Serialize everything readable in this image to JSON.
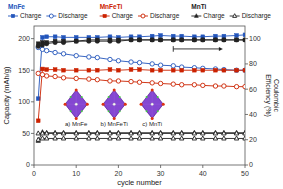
{
  "chart_data": {
    "type": "line",
    "xlabel": "cycle number",
    "ylabel": "Capacity (mAh/g)",
    "y2label": "Coulombic\nEfficiency (%)",
    "xlim": [
      0,
      50
    ],
    "xticks": [
      0,
      10,
      20,
      30,
      40,
      50
    ],
    "ylim": [
      0,
      220
    ],
    "yticks": [
      0,
      50,
      100,
      150,
      200
    ],
    "y2lim": [
      0,
      110
    ],
    "y2ticks": [
      0,
      20,
      40,
      60,
      80,
      100
    ],
    "grid": false,
    "legend": "top",
    "legend_groups": [
      "MnFe",
      "MnFeTi",
      "MnTi"
    ],
    "annotations": [
      "a) MnFe",
      "b) MnFeTi",
      "c) MnTi"
    ],
    "series": [
      {
        "name": "Charge",
        "color": "#2255bb",
        "marker": "square",
        "x": [
          1,
          2,
          3,
          5,
          7,
          10,
          13,
          15,
          18,
          20,
          23,
          25,
          28,
          30,
          33,
          35,
          38,
          40,
          43,
          45,
          48,
          50
        ],
        "values": [
          105,
          202,
          203,
          203,
          202,
          202,
          202,
          202,
          203,
          202,
          203,
          203,
          204,
          205,
          204,
          204,
          203,
          203,
          204,
          204,
          205,
          206
        ]
      },
      {
        "name": "Discharge",
        "color": "#2255bb",
        "marker": "circle-open",
        "x": [
          1,
          2,
          3,
          5,
          7,
          10,
          13,
          15,
          18,
          20,
          23,
          25,
          28,
          30,
          33,
          35,
          38,
          40,
          43,
          45,
          48,
          50
        ],
        "values": [
          186,
          183,
          181,
          178,
          176,
          173,
          171,
          170,
          167,
          165,
          163,
          162,
          160,
          158,
          157,
          155,
          154,
          153,
          152,
          151,
          150,
          150
        ]
      },
      {
        "name": "Charge",
        "color": "#cc2200",
        "marker": "square",
        "x": [
          1,
          2,
          3,
          5,
          7,
          10,
          13,
          15,
          18,
          20,
          23,
          25,
          28,
          30,
          33,
          35,
          38,
          40,
          43,
          45,
          48,
          50
        ],
        "values": [
          70,
          152,
          151,
          151,
          150,
          150,
          150,
          150,
          151,
          150,
          151,
          151,
          150,
          150,
          150,
          150,
          150,
          150,
          150,
          150,
          150,
          150
        ]
      },
      {
        "name": "Discharge",
        "color": "#cc2200",
        "marker": "circle-open",
        "x": [
          1,
          2,
          3,
          5,
          7,
          10,
          13,
          15,
          18,
          20,
          23,
          25,
          28,
          30,
          33,
          35,
          38,
          40,
          43,
          45,
          48,
          50
        ],
        "values": [
          145,
          143,
          141,
          140,
          138,
          137,
          136,
          135,
          133,
          133,
          132,
          131,
          130,
          129,
          128,
          127,
          127,
          126,
          125,
          125,
          124,
          124
        ]
      },
      {
        "name": "Charge",
        "color": "#222222",
        "marker": "triangle",
        "x": [
          1,
          2,
          3,
          5,
          7,
          10,
          13,
          15,
          18,
          20,
          23,
          25,
          28,
          30,
          33,
          35,
          38,
          40,
          43,
          45,
          48,
          50
        ],
        "values": [
          38,
          52,
          51,
          51,
          51,
          51,
          51,
          51,
          51,
          51,
          51,
          51,
          51,
          51,
          51,
          51,
          51,
          51,
          51,
          51,
          51,
          51
        ]
      },
      {
        "name": "Discharge",
        "color": "#222222",
        "marker": "triangle-open",
        "x": [
          1,
          2,
          3,
          5,
          7,
          10,
          13,
          15,
          18,
          20,
          23,
          25,
          28,
          30,
          33,
          35,
          38,
          40,
          43,
          45,
          48,
          50
        ],
        "values": [
          50,
          50,
          50,
          50,
          50,
          50,
          50,
          50,
          50,
          50,
          50,
          50,
          50,
          50,
          50,
          50,
          50,
          50,
          50,
          50,
          50,
          50
        ]
      },
      {
        "color": "#222222",
        "marker": "square",
        "axis": "y2",
        "x": [
          1,
          2,
          3,
          5,
          7,
          10,
          13,
          15,
          18,
          20,
          23,
          25,
          28,
          30,
          33,
          35,
          38,
          40,
          43,
          45,
          48,
          50
        ],
        "values": [
          96,
          97,
          97,
          98,
          98,
          98,
          99,
          99,
          99,
          99,
          99,
          99,
          99,
          99,
          99,
          99,
          99,
          99,
          99,
          99,
          99,
          99
        ]
      },
      {
        "color": "#222222",
        "marker": "circle",
        "axis": "y2",
        "x": [
          1,
          2,
          3,
          5,
          7,
          10,
          13,
          15,
          18,
          20,
          23,
          25,
          28,
          30,
          33,
          35,
          38,
          40,
          43,
          45,
          48,
          50
        ],
        "values": [
          94,
          95,
          96,
          97,
          97,
          98,
          98,
          98,
          98,
          98,
          99,
          99,
          99,
          99,
          99,
          99,
          99,
          99,
          99,
          99,
          99,
          99
        ]
      },
      {
        "color": "#222222",
        "marker": "triangle-open",
        "axis": "y2",
        "x": [
          1,
          2,
          3,
          5,
          7,
          10,
          13,
          15,
          18,
          20,
          23,
          25,
          28,
          30,
          33,
          35,
          38,
          40,
          43,
          45,
          48,
          50
        ],
        "values": [
          20,
          21,
          21,
          21,
          21,
          21,
          21,
          21,
          21,
          21,
          21,
          21,
          21,
          21,
          21,
          21,
          21,
          21,
          21,
          21,
          21,
          21
        ]
      }
    ]
  }
}
